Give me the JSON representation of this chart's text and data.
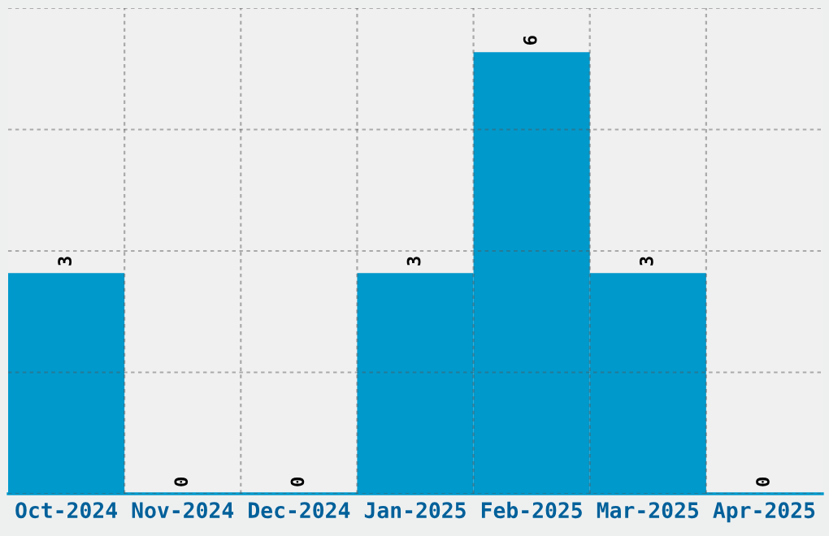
{
  "chart_data": {
    "type": "bar",
    "categories": [
      "Oct-2024",
      "Nov-2024",
      "Dec-2024",
      "Jan-2025",
      "Feb-2025",
      "Mar-2025",
      "Apr-2025"
    ],
    "values": [
      3,
      0,
      0,
      3,
      6,
      3,
      0
    ],
    "color": "#0099cc",
    "ylim": [
      0,
      6.6
    ],
    "yticks": [
      {
        "value": 0,
        "label": null
      },
      {
        "value": 1.65,
        "label": null
      },
      {
        "value": 3.3,
        "label": null
      },
      {
        "value": 4.95,
        "label": null
      },
      {
        "value": 6.6,
        "label": null
      }
    ],
    "tick_labels": "x",
    "grid": true,
    "data_labels": true
  }
}
